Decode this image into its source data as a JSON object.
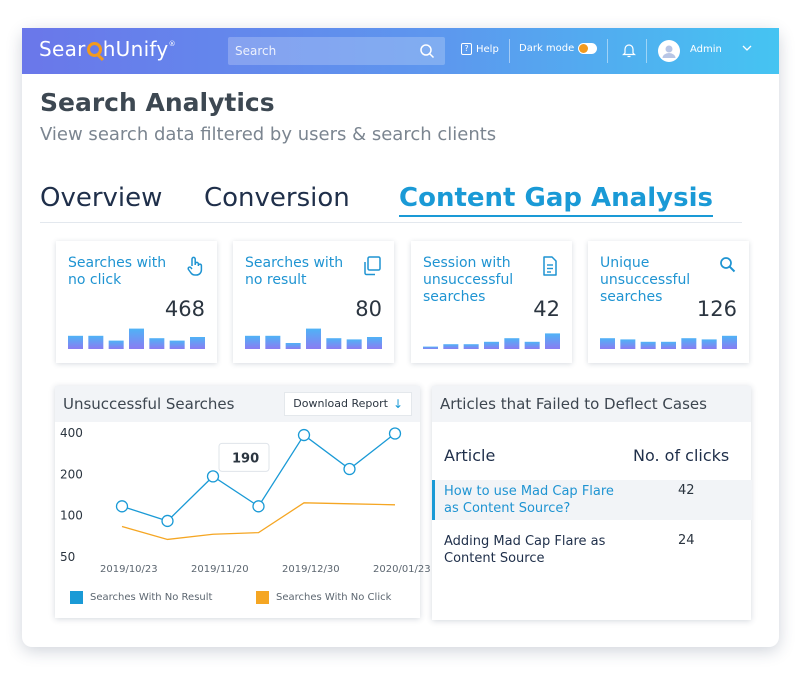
{
  "header": {
    "logo": {
      "prefix": "Sear",
      "suffix": "hUnify",
      "mark": "®"
    },
    "search_placeholder": "Search",
    "help_label": "Help",
    "darkmode_label": "Dark mode",
    "user_label": "Admin",
    "icons": [
      "search-icon",
      "help-icon",
      "toggle-switch",
      "bell-icon",
      "user-avatar-icon",
      "chevron-down-icon"
    ]
  },
  "page": {
    "title": "Search Analytics",
    "subtitle": "View search data filtered by users & search clients"
  },
  "tabs": [
    {
      "label": "Overview",
      "active": false
    },
    {
      "label": "Conversion",
      "active": false
    },
    {
      "label": "Content Gap Analysis",
      "active": true
    }
  ],
  "cards": [
    {
      "label": "Searches with\nno click",
      "value": "468",
      "icon": "hand-pointer-icon",
      "bars": [
        0.55,
        0.55,
        0.35,
        0.85,
        0.45,
        0.35,
        0.5
      ]
    },
    {
      "label": "Searches with\nno result",
      "value": "80",
      "icon": "copy-icon",
      "bars": [
        0.55,
        0.55,
        0.25,
        0.85,
        0.45,
        0.4,
        0.5
      ]
    },
    {
      "label": "Session with\nunsuccessful\nsearches",
      "value": "42",
      "icon": "document-icon",
      "bars": [
        0.1,
        0.2,
        0.2,
        0.3,
        0.45,
        0.3,
        0.65
      ]
    },
    {
      "label": "Unique\nunsuccessful\nsearches",
      "value": "126",
      "icon": "search-icon",
      "bars": [
        0.45,
        0.4,
        0.3,
        0.3,
        0.45,
        0.4,
        0.55
      ]
    }
  ],
  "colors": {
    "accent": "#1a9ad6",
    "orange": "#f5a623",
    "bar_top": "#4fb3f6",
    "bar_bottom": "#8a7cf2"
  },
  "chart_panel": {
    "title": "Unsuccessful Searches",
    "download_label": "Download Report",
    "tooltip": "190"
  },
  "chart_data": {
    "type": "line",
    "x": [
      "2019/10/23",
      "2019/11/06",
      "2019/11/20",
      "2019/12/06",
      "2019/12/20",
      "2020/01/06",
      "2020/01/23"
    ],
    "xticks": [
      "2019/10/23",
      "2019/11/20",
      "2019/12/30",
      "2020/01/23"
    ],
    "yticks": [
      50,
      100,
      200,
      400
    ],
    "y_scale": "log",
    "ylim": [
      50,
      400
    ],
    "series": [
      {
        "name": "Searches With No Result",
        "color": "#1a9ad6",
        "values": [
          115,
          90,
          190,
          115,
          380,
          215,
          390
        ],
        "markers": true
      },
      {
        "name": "Searches With No Click",
        "color": "#f5a623",
        "values": [
          82,
          66,
          72,
          74,
          122,
          120,
          118
        ],
        "markers": false
      }
    ],
    "grid": false,
    "legend": "bottom"
  },
  "articles_panel": {
    "title": "Articles that Failed to Deflect Cases",
    "col_article": "Article",
    "col_clicks": "No. of clicks",
    "rows": [
      {
        "title": "How to use Mad Cap Flare\nas Content  Source?",
        "clicks": "42",
        "highlight": true
      },
      {
        "title": "Adding Mad Cap Flare as\nContent Source",
        "clicks": "24",
        "highlight": false
      }
    ]
  }
}
